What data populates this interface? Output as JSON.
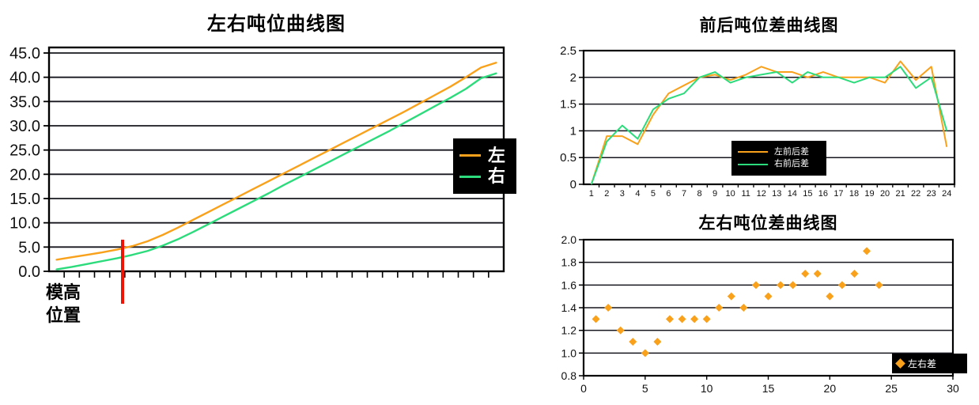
{
  "palette": {
    "orange": "#F9A11B",
    "green": "#2CDB7B",
    "red_marker": "#EE1505",
    "grid": "#17171f",
    "axis": "#000000",
    "legend_bg": "#000000",
    "legend_text": "#ffffff",
    "label_text": "#111111"
  },
  "chart_data": [
    {
      "type": "line",
      "title": "左右吨位曲线图",
      "ylabel": "",
      "xlabel": "",
      "ylim": [
        0,
        45
      ],
      "y_ticks": [
        "45.0",
        "40.0",
        "35.0",
        "30.0",
        "25.0",
        "20.0",
        "15.0",
        "10.0",
        "5.0",
        "0.0"
      ],
      "x_tick_count": 30,
      "grid": "on",
      "legend_position": "right",
      "series": [
        {
          "name": "左",
          "color_key": "orange",
          "values": [
            2.4,
            2.9,
            3.4,
            3.9,
            4.5,
            5.2,
            6.2,
            7.5,
            9.0,
            10.6,
            12.2,
            13.8,
            15.4,
            17.0,
            18.6,
            20.2,
            21.8,
            23.4,
            25.0,
            26.6,
            28.2,
            29.8,
            31.4,
            33.0,
            34.7,
            36.4,
            38.1,
            40.0,
            42.0,
            43.0
          ]
        },
        {
          "name": "右",
          "color_key": "green",
          "values": [
            0.4,
            0.9,
            1.5,
            2.1,
            2.7,
            3.4,
            4.2,
            5.3,
            6.6,
            8.1,
            9.7,
            11.3,
            12.9,
            14.5,
            16.1,
            17.8,
            19.4,
            21.0,
            22.6,
            24.2,
            25.8,
            27.4,
            29.0,
            30.7,
            32.4,
            34.1,
            35.8,
            37.6,
            39.8,
            40.8
          ]
        }
      ],
      "annotation": {
        "label": "模高\n位置",
        "marker": "red-vertical-line",
        "marker_x_fraction": 0.162
      }
    },
    {
      "type": "line",
      "title": "前后吨位差曲线图",
      "ylabel": "",
      "xlabel": "",
      "ylim": [
        0,
        2.5
      ],
      "y_ticks": [
        "2.5",
        "2",
        "1.5",
        "1",
        "0.5",
        "0"
      ],
      "x_labels": [
        "1",
        "2",
        "3",
        "4",
        "5",
        "6",
        "7",
        "8",
        "9",
        "10",
        "11",
        "12",
        "13",
        "14",
        "15",
        "16",
        "17",
        "18",
        "19",
        "20",
        "21",
        "22",
        "23",
        "24"
      ],
      "grid": "on",
      "legend_position": "inside-bottom-center",
      "series": [
        {
          "name": "左前后差",
          "color_key": "orange",
          "values": [
            0,
            0.9,
            0.9,
            0.75,
            1.3,
            1.7,
            1.85,
            2.0,
            2.05,
            1.95,
            2.05,
            2.2,
            2.1,
            2.1,
            2.0,
            2.1,
            2.0,
            2.0,
            2.0,
            1.9,
            2.3,
            1.95,
            2.2,
            0.7
          ]
        },
        {
          "name": "右前后差",
          "color_key": "green",
          "values": [
            0,
            0.8,
            1.1,
            0.85,
            1.4,
            1.6,
            1.7,
            2.0,
            2.1,
            1.9,
            2.0,
            2.05,
            2.1,
            1.9,
            2.1,
            2.0,
            2.0,
            1.9,
            2.0,
            2.0,
            2.2,
            1.8,
            2.0,
            1.0
          ]
        }
      ]
    },
    {
      "type": "scatter",
      "title": "左右吨位差曲线图",
      "ylabel": "",
      "xlabel": "",
      "ylim": [
        0.8,
        2.0
      ],
      "xlim": [
        0,
        30
      ],
      "y_ticks": [
        "2.0",
        "1.8",
        "1.6",
        "1.4",
        "1.2",
        "1.0",
        "0.8"
      ],
      "x_ticks": [
        "0",
        "5",
        "10",
        "15",
        "20",
        "25",
        "30"
      ],
      "grid": "on",
      "legend_position": "inside-bottom-right",
      "series": [
        {
          "name": "左右差",
          "color_key": "orange",
          "marker": "diamond",
          "x": [
            1,
            2,
            3,
            4,
            5,
            6,
            7,
            8,
            9,
            10,
            11,
            12,
            13,
            14,
            15,
            16,
            17,
            18,
            19,
            20,
            21,
            22,
            23,
            24
          ],
          "y": [
            1.3,
            1.4,
            1.2,
            1.1,
            1.0,
            1.1,
            1.3,
            1.3,
            1.3,
            1.3,
            1.4,
            1.5,
            1.4,
            1.6,
            1.5,
            1.6,
            1.6,
            1.7,
            1.7,
            1.5,
            1.6,
            1.7,
            1.9,
            1.6
          ]
        }
      ]
    }
  ]
}
